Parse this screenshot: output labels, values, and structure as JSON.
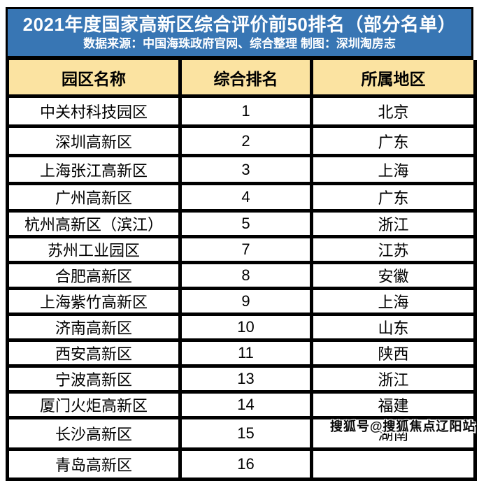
{
  "title": "2021年度国家高新区综合评价前50排名（部分名单）",
  "subtitle": "数据来源：中国海珠政府官网、综合整理  制图：深圳淘房志",
  "colors": {
    "title_background": "#3876B4",
    "title_text": "#FFFFFF",
    "header_background": "#FBE3A1",
    "grid_border": "#000000",
    "cell_background": "#FFFFFF"
  },
  "table": {
    "headers": [
      "园区名称",
      "综合排名",
      "所属地区"
    ],
    "rows": [
      {
        "name": "中关村科技园区",
        "rank": "1",
        "region": "北京"
      },
      {
        "name": "深圳高新区",
        "rank": "2",
        "region": "广东"
      },
      {
        "name": "上海张江高新区",
        "rank": "3",
        "region": "上海"
      },
      {
        "name": "广州高新区",
        "rank": "4",
        "region": "广东"
      },
      {
        "name": "杭州高新区（滨江）",
        "rank": "5",
        "region": "浙江"
      },
      {
        "name": "苏州工业园区",
        "rank": "7",
        "region": "江苏"
      },
      {
        "name": "合肥高新区",
        "rank": "8",
        "region": "安徽"
      },
      {
        "name": "上海紫竹高新区",
        "rank": "9",
        "region": "上海"
      },
      {
        "name": "济南高新区",
        "rank": "10",
        "region": "山东"
      },
      {
        "name": "西安高新区",
        "rank": "11",
        "region": "陕西"
      },
      {
        "name": "宁波高新区",
        "rank": "13",
        "region": "浙江"
      },
      {
        "name": "厦门火炬高新区",
        "rank": "14",
        "region": "福建"
      },
      {
        "name": "长沙高新区",
        "rank": "15",
        "region": "湖南"
      },
      {
        "name": "青岛高新区",
        "rank": "16",
        "region": ""
      }
    ]
  },
  "watermark": "搜狐号@搜狐焦点辽阳站"
}
